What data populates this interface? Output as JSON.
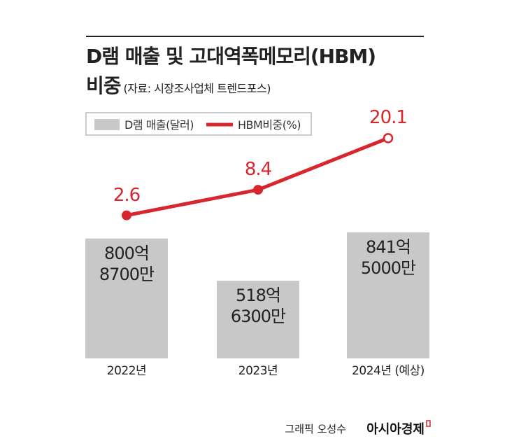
{
  "chart_data": {
    "type": "bar",
    "title": "D램 매출 및 고대역폭메모리(HBM)\n비중",
    "subtitle": "(자료: 시장조사업체 트렌드포스)",
    "categories": [
      "2022년",
      "2023년",
      "2024년\n(예상)"
    ],
    "series": [
      {
        "name": "D램 매출(달러)",
        "type": "bar",
        "color": "#c8c8c8",
        "values": [
          80087000000,
          51863000000,
          84150000000
        ],
        "value_labels": [
          "800억\n8700만",
          "518억\n6300만",
          "841억\n5000만"
        ]
      },
      {
        "name": "HBM비중(%)",
        "type": "line",
        "axis": "y2",
        "color": "#d7262e",
        "values": [
          2.6,
          8.4,
          20.1
        ]
      }
    ],
    "credit": "그래픽 오성수",
    "source_brand": "아시아경제"
  }
}
